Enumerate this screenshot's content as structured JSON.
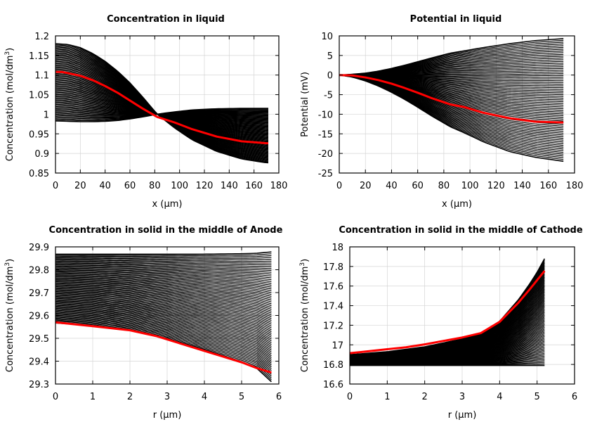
{
  "chart_data": [
    {
      "type": "line",
      "title": "Concentration in liquid",
      "xlabel": "x (µm)",
      "ylabel": "Concentration (mol/dm³)",
      "ylabel_base": "Concentration (mol/dm",
      "ylabel_sup": "3",
      "ylabel_tail": ")",
      "xlim": [
        0,
        180
      ],
      "ylim": [
        0.85,
        1.2
      ],
      "xticks": [
        0,
        20,
        40,
        60,
        80,
        100,
        120,
        140,
        160,
        180
      ],
      "xtick_labels": [
        "0",
        "20",
        "40",
        "60",
        "80",
        "100",
        "120",
        "140",
        "160",
        "180"
      ],
      "yticks": [
        0.85,
        0.9,
        0.95,
        1.0,
        1.05,
        1.1,
        1.15,
        1.2
      ],
      "ytick_labels": [
        "0.85",
        "0.9",
        "0.95",
        "1",
        "1.05",
        "1.1",
        "1.15",
        "1.2"
      ],
      "grid": true,
      "series": [
        {
          "color": "#000000",
          "x": [
            0,
            10,
            20,
            30,
            40,
            50,
            60,
            70,
            82,
            88,
            96,
            110,
            130,
            150,
            170,
            171.5
          ],
          "y": [
            1.18,
            1.178,
            1.17,
            1.155,
            1.135,
            1.11,
            1.08,
            1.045,
            1.0,
            0.985,
            0.965,
            0.935,
            0.905,
            0.886,
            0.876,
            0.876
          ]
        },
        {
          "color": "#000000",
          "x": [
            0,
            10,
            20,
            30,
            40,
            50,
            60,
            70,
            82,
            88,
            96,
            110,
            130,
            150,
            170,
            171.5
          ],
          "y": [
            0.983,
            0.982,
            0.981,
            0.981,
            0.982,
            0.984,
            0.988,
            0.993,
            1.0,
            1.003,
            1.006,
            1.011,
            1.014,
            1.015,
            1.015,
            1.015
          ]
        },
        {
          "color": "#ff0000",
          "x": [
            0,
            5,
            10,
            20,
            30,
            40,
            50,
            60,
            70,
            82,
            88,
            96,
            110,
            130,
            150,
            170,
            171.5
          ],
          "y": [
            1.108,
            1.108,
            1.105,
            1.098,
            1.087,
            1.072,
            1.055,
            1.035,
            1.015,
            0.993,
            0.987,
            0.979,
            0.962,
            0.943,
            0.931,
            0.926,
            0.926
          ]
        }
      ]
    },
    {
      "type": "line",
      "title": "Potential in liquid",
      "xlabel": "x (µm)",
      "ylabel": "Potential (mV)",
      "xlim": [
        0,
        180
      ],
      "ylim": [
        -25,
        10
      ],
      "xticks": [
        0,
        20,
        40,
        60,
        80,
        100,
        120,
        140,
        160,
        180
      ],
      "xtick_labels": [
        "0",
        "20",
        "40",
        "60",
        "80",
        "100",
        "120",
        "140",
        "160",
        "180"
      ],
      "yticks": [
        -25,
        -20,
        -15,
        -10,
        -5,
        0,
        5,
        10
      ],
      "ytick_labels": [
        "-25",
        "-20",
        "-15",
        "-10",
        "-5",
        "0",
        "5",
        "10"
      ],
      "grid": true,
      "series": [
        {
          "color": "#000000",
          "x": [
            0,
            10,
            20,
            30,
            40,
            50,
            60,
            70,
            85,
            96,
            110,
            130,
            150,
            171.5
          ],
          "y": [
            0,
            0.2,
            0.5,
            1.0,
            1.7,
            2.5,
            3.4,
            4.3,
            5.6,
            6.2,
            7.0,
            8.0,
            8.8,
            9.3
          ]
        },
        {
          "color": "#000000",
          "x": [
            0,
            10,
            20,
            30,
            40,
            50,
            60,
            70,
            85,
            96,
            110,
            130,
            150,
            171.5
          ],
          "y": [
            0,
            -0.5,
            -1.5,
            -2.8,
            -4.4,
            -6.2,
            -8.2,
            -10.3,
            -13.2,
            -14.8,
            -17.0,
            -19.5,
            -21.0,
            -22.0
          ]
        },
        {
          "color": "#ff0000",
          "x": [
            0,
            10,
            20,
            30,
            40,
            50,
            60,
            70,
            85,
            96,
            110,
            130,
            150,
            171.5
          ],
          "y": [
            0,
            -0.1,
            -0.6,
            -1.3,
            -2.2,
            -3.3,
            -4.5,
            -5.8,
            -7.5,
            -8.2,
            -9.6,
            -11.0,
            -11.9,
            -12.1
          ]
        }
      ]
    },
    {
      "type": "line",
      "title": "Concentration in solid in the middle of Anode",
      "xlabel": "r (µm)",
      "ylabel": "Concentration (mol/dm³)",
      "ylabel_base": "Concentration (mol/dm",
      "ylabel_sup": "3",
      "ylabel_tail": ")",
      "xlim": [
        0,
        6
      ],
      "ylim": [
        29.3,
        29.9
      ],
      "xticks": [
        0,
        1,
        2,
        3,
        4,
        5,
        6
      ],
      "xtick_labels": [
        "0",
        "1",
        "2",
        "3",
        "4",
        "5",
        "6"
      ],
      "yticks": [
        29.3,
        29.4,
        29.5,
        29.6,
        29.7,
        29.8,
        29.9
      ],
      "ytick_labels": [
        "29.3",
        "29.4",
        "29.5",
        "29.6",
        "29.7",
        "29.8",
        "29.9"
      ],
      "grid": true,
      "series": [
        {
          "color": "#000000",
          "x": [
            0,
            1,
            2,
            3,
            4,
            4.5,
            5.0,
            5.4,
            5.8
          ],
          "y": [
            29.868,
            29.868,
            29.868,
            29.868,
            29.868,
            29.869,
            29.87,
            29.872,
            29.878
          ]
        },
        {
          "color": "#000000",
          "x": [
            0,
            1,
            2,
            3,
            4,
            4.5,
            5.0,
            5.4,
            5.8
          ],
          "y": [
            29.567,
            29.555,
            29.535,
            29.5,
            29.452,
            29.425,
            29.398,
            29.37,
            29.31
          ]
        },
        {
          "color": "#ff0000",
          "x": [
            0,
            1,
            2,
            2.7,
            3,
            4,
            5,
            5.4,
            5.8
          ],
          "y": [
            29.57,
            29.553,
            29.535,
            29.51,
            29.495,
            29.445,
            29.395,
            29.37,
            29.35
          ]
        }
      ]
    },
    {
      "type": "line",
      "title": "Concentration in solid in the middle of Cathode",
      "xlabel": "r (µm)",
      "ylabel": "Concentration (mol/dm³)",
      "ylabel_base": "Concentration (mol/dm",
      "ylabel_sup": "3",
      "ylabel_tail": ")",
      "xlim": [
        0,
        6
      ],
      "ylim": [
        16.6,
        18
      ],
      "xticks": [
        0,
        1,
        2,
        3,
        4,
        5,
        6
      ],
      "xtick_labels": [
        "0",
        "1",
        "2",
        "3",
        "4",
        "5",
        "6"
      ],
      "yticks": [
        16.6,
        16.8,
        17.0,
        17.2,
        17.4,
        17.6,
        17.8,
        18.0
      ],
      "ytick_labels": [
        "16.6",
        "16.8",
        "17",
        "17.2",
        "17.4",
        "17.6",
        "17.8",
        "18"
      ],
      "grid": true,
      "series": [
        {
          "color": "#000000",
          "x": [
            0,
            1,
            2,
            3,
            3.5,
            4,
            4.5,
            4.8,
            5.0,
            5.2
          ],
          "y": [
            16.9,
            16.93,
            16.98,
            17.06,
            17.12,
            17.24,
            17.46,
            17.62,
            17.74,
            17.88
          ]
        },
        {
          "color": "#000000",
          "x": [
            0,
            1,
            2,
            3,
            4,
            5.2
          ],
          "y": [
            16.79,
            16.79,
            16.79,
            16.79,
            16.79,
            16.79
          ]
        },
        {
          "color": "#ff0000",
          "x": [
            0,
            0.5,
            1,
            1.5,
            2,
            2.5,
            3,
            3.5,
            4,
            4.5,
            4.8,
            5.0,
            5.2
          ],
          "y": [
            16.915,
            16.935,
            16.955,
            16.975,
            17.005,
            17.04,
            17.075,
            17.12,
            17.235,
            17.43,
            17.565,
            17.66,
            17.755
          ]
        }
      ]
    }
  ]
}
